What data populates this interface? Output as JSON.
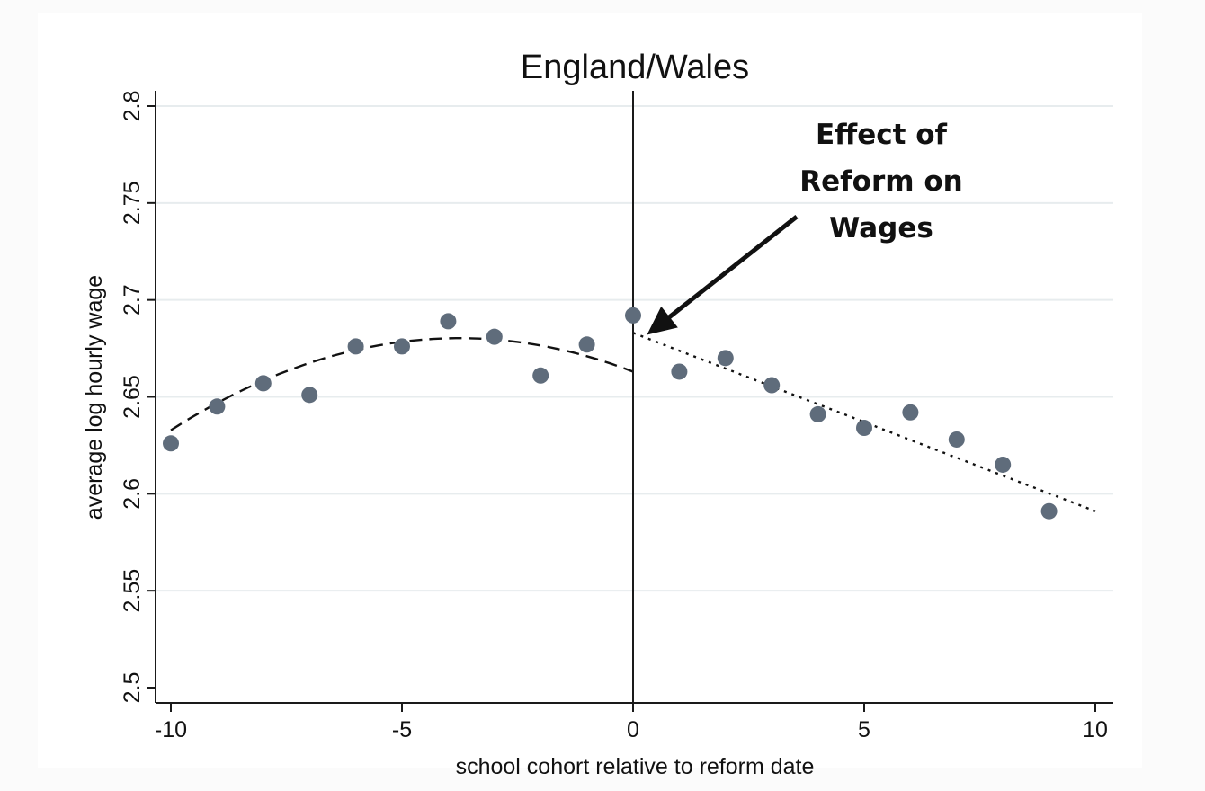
{
  "chart_data": {
    "type": "scatter",
    "title": "England/Wales",
    "xlabel": "school cohort relative to reform date",
    "ylabel": "average log hourly wage",
    "xlim": [
      -10,
      10
    ],
    "ylim": [
      2.5,
      2.8
    ],
    "xticks": [
      -10,
      -5,
      0,
      5,
      10
    ],
    "xtick_labels": [
      "-10",
      "-5",
      "0",
      "5",
      "10"
    ],
    "yticks": [
      2.5,
      2.55,
      2.6,
      2.65,
      2.7,
      2.75,
      2.8
    ],
    "ytick_labels": [
      "2.5",
      "2.55",
      "2.6",
      "2.65",
      "2.7",
      "2.75",
      "2.8"
    ],
    "grid": "horizontal",
    "reference_line_x": 0,
    "points": {
      "x": [
        -10,
        -9,
        -8,
        -7,
        -6,
        -5,
        -4,
        -3,
        -2,
        -1,
        0,
        1,
        2,
        3,
        4,
        5,
        6,
        7,
        8,
        9
      ],
      "y": [
        2.626,
        2.645,
        2.657,
        2.651,
        2.676,
        2.676,
        2.689,
        2.681,
        2.661,
        2.677,
        2.692,
        2.663,
        2.67,
        2.656,
        2.641,
        2.634,
        2.642,
        2.628,
        2.615,
        2.591
      ]
    },
    "fits": [
      {
        "style": "dashed",
        "x_range": [
          -10,
          0
        ],
        "quadratic": [
          2.663,
          -0.00918,
          -0.00122
        ]
      },
      {
        "style": "dotted",
        "x_range": [
          0,
          10
        ],
        "linear": [
          2.683,
          -0.0092
        ]
      }
    ],
    "annotation": {
      "lines": [
        "Effect of",
        "Reform on",
        "Wages"
      ],
      "points_to": {
        "x": 0.3,
        "y": 2.682
      }
    },
    "colors": {
      "marker": "#5f6c7b",
      "grid": "#e7ecee",
      "axis": "#1a1a1a",
      "background": "#ffffff"
    }
  }
}
